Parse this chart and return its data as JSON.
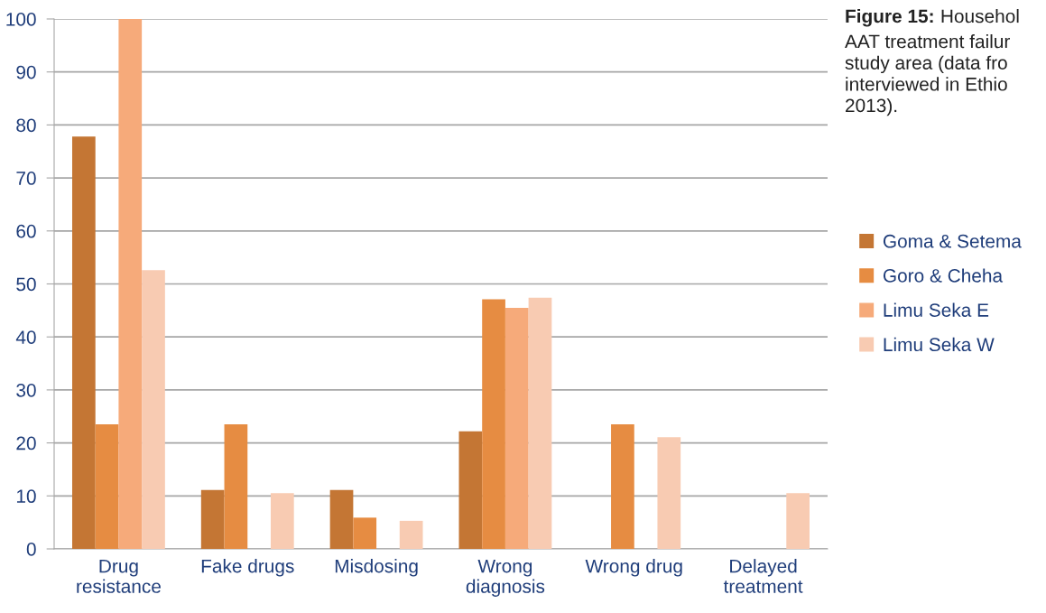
{
  "chart_data": {
    "type": "bar",
    "categories": [
      "Drug\nresistance",
      "Fake drugs",
      "Misdosing",
      "Wrong\ndiagnosis",
      "Wrong drug",
      "Delayed\ntreatment"
    ],
    "series": [
      {
        "name": "Goma & Setema",
        "color": "#c47634",
        "values": [
          77.8,
          11.1,
          11.1,
          22.2,
          0,
          0
        ]
      },
      {
        "name": "Goro & Cheha",
        "color": "#e68c42",
        "values": [
          23.5,
          23.5,
          5.9,
          47.1,
          23.5,
          0
        ]
      },
      {
        "name": "Limu Seka E",
        "color": "#f6aa7a",
        "values": [
          100,
          0,
          0,
          45.5,
          0,
          0
        ]
      },
      {
        "name": "Limu Seka W",
        "color": "#f8cbb2",
        "values": [
          52.6,
          10.5,
          5.3,
          47.4,
          21.1,
          10.5
        ]
      }
    ],
    "ylim": [
      0,
      100
    ],
    "yticks": [
      0,
      10,
      20,
      30,
      40,
      50,
      60,
      70,
      80,
      90,
      100
    ],
    "grid": "y",
    "legend": "right",
    "annotations": [
      "Figure 15:",
      " Househol\nAAT treatment failur\nstudy area (data fro\ninterviewed in Ethio\n2013)."
    ]
  }
}
